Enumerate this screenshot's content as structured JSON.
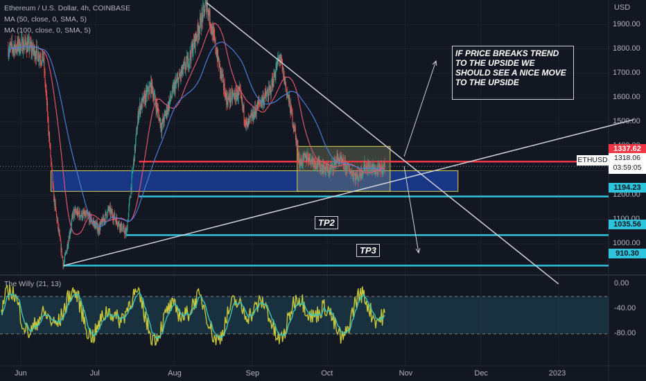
{
  "header": {
    "symbol_line": "Ethereum / U.S. Dollar, 4h, COINBASE",
    "ma1": "MA (50, close, 0, SMA, 5)",
    "ma2": "MA (100, close, 0, SMA, 5)",
    "indicator": "The Willy (21, 13)",
    "currency": "USD"
  },
  "price_axis": [
    "1900.00",
    "1800.00",
    "1700.00",
    "1600.00",
    "1500.00",
    "1400.00",
    "1300.00",
    "1200.00",
    "1100.00",
    "1000.00"
  ],
  "osc_axis": [
    "0.00",
    "-40.00",
    "-80.00"
  ],
  "time_axis": [
    "Jun",
    "Jul",
    "Aug",
    "Sep",
    "Oct",
    "Nov",
    "Dec",
    "2023"
  ],
  "price_tags": {
    "red": "1337.62",
    "last": "1318.06",
    "countdown": "03:59:05",
    "symbol": "ETHUSD",
    "l1": "1194.23",
    "l2": "1035.56",
    "l3": "910.30"
  },
  "annotation": "IF PRICE BREAKS TREND TO THE UPSIDE WE SHOULD SEE A NICE MOVE TO THE UPSIDE",
  "targets": {
    "tp2": "TP2",
    "tp3": "TP3"
  },
  "colors": {
    "background": "#131722",
    "up": "#26a69a",
    "down": "#ef5350",
    "ma50": "#e05470",
    "ma100": "#4a7fd8",
    "resistance": "#f23645",
    "support": "#2ec4dc",
    "zone": "#1a3a8f",
    "willy": "#c8c83a",
    "willy_signal": "#3ec6b8"
  },
  "chart_data": {
    "type": "candlestick",
    "timeframe": "4h",
    "ylim": [
      880,
      1990
    ],
    "x_labels": [
      "Jun",
      "Jul",
      "Aug",
      "Sep",
      "Oct",
      "Nov",
      "Dec",
      "2023"
    ],
    "price_path": [
      {
        "date": "2022-05-27",
        "price": 1800
      },
      {
        "date": "2022-06-03",
        "price": 1820
      },
      {
        "date": "2022-06-10",
        "price": 1760
      },
      {
        "date": "2022-06-14",
        "price": 1200
      },
      {
        "date": "2022-06-18",
        "price": 910
      },
      {
        "date": "2022-06-22",
        "price": 1130
      },
      {
        "date": "2022-06-28",
        "price": 1110
      },
      {
        "date": "2022-07-02",
        "price": 1060
      },
      {
        "date": "2022-07-06",
        "price": 1140
      },
      {
        "date": "2022-07-13",
        "price": 1040
      },
      {
        "date": "2022-07-18",
        "price": 1550
      },
      {
        "date": "2022-07-23",
        "price": 1650
      },
      {
        "date": "2022-07-27",
        "price": 1480
      },
      {
        "date": "2022-08-01",
        "price": 1640
      },
      {
        "date": "2022-08-07",
        "price": 1760
      },
      {
        "date": "2022-08-14",
        "price": 1990
      },
      {
        "date": "2022-08-19",
        "price": 1730
      },
      {
        "date": "2022-08-22",
        "price": 1590
      },
      {
        "date": "2022-08-27",
        "price": 1620
      },
      {
        "date": "2022-08-30",
        "price": 1480
      },
      {
        "date": "2022-09-04",
        "price": 1580
      },
      {
        "date": "2022-09-08",
        "price": 1620
      },
      {
        "date": "2022-09-12",
        "price": 1770
      },
      {
        "date": "2022-09-15",
        "price": 1620
      },
      {
        "date": "2022-09-18",
        "price": 1470
      },
      {
        "date": "2022-09-20",
        "price": 1330
      },
      {
        "date": "2022-09-23",
        "price": 1360
      },
      {
        "date": "2022-09-28",
        "price": 1320
      },
      {
        "date": "2022-10-02",
        "price": 1300
      },
      {
        "date": "2022-10-05",
        "price": 1350
      },
      {
        "date": "2022-10-09",
        "price": 1310
      },
      {
        "date": "2022-10-13",
        "price": 1270
      },
      {
        "date": "2022-10-16",
        "price": 1320
      },
      {
        "date": "2022-10-21",
        "price": 1300
      },
      {
        "date": "2022-10-24",
        "price": 1318
      }
    ],
    "horizontal_levels": [
      1337.62,
      1194.23,
      1035.56,
      910.3
    ],
    "demand_zone": {
      "from": "2022-06-13",
      "to": "2022-11-22",
      "low": 1215,
      "high": 1300
    },
    "consolidation_box": {
      "from": "2022-09-19",
      "to": "2022-10-26",
      "low": 1215,
      "high": 1400
    },
    "trendlines": [
      {
        "from": {
          "date": "2022-06-18",
          "price": 910
        },
        "to": {
          "date": "2023-01-31",
          "price": 1510
        }
      },
      {
        "from": {
          "date": "2022-08-14",
          "price": 1990
        },
        "to": {
          "date": "2023-01-01",
          "price": 835
        }
      }
    ],
    "oscillator": {
      "name": "The Willy (21, 13)",
      "ylim": [
        -100,
        0
      ],
      "levels": [
        -20,
        -80
      ]
    }
  }
}
